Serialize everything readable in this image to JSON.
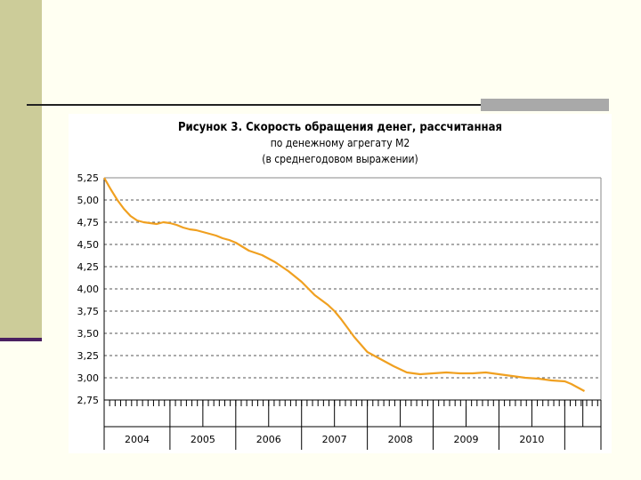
{
  "chart_data": {
    "type": "line",
    "title": "Рисунок 3. Скорость обращения денег, рассчитанная",
    "subtitle": "по денежному агрегату М2",
    "note": "(в среднегодовом выражении)",
    "ylim": [
      2.75,
      5.25
    ],
    "y_ticks": [
      "5,25",
      "5,00",
      "4,75",
      "4,50",
      "4,25",
      "4,00",
      "3,75",
      "3,50",
      "3,25",
      "3,00",
      "2,75"
    ],
    "y_tick_values": [
      5.25,
      5.0,
      4.75,
      4.5,
      4.25,
      4.0,
      3.75,
      3.5,
      3.25,
      3.0,
      2.75
    ],
    "x_labels": [
      "2004",
      "2005",
      "2006",
      "2007",
      "2008",
      "2009",
      "2010"
    ],
    "grid": true,
    "line_color": "#f0a020",
    "series": [
      {
        "x": [
          2003.0,
          2003.1,
          2003.2,
          2003.3,
          2003.4,
          2003.5,
          2003.6,
          2003.7,
          2003.8,
          2003.9,
          2004.0,
          2004.1,
          2004.2,
          2004.3,
          2004.4,
          2004.5,
          2004.6,
          2004.7,
          2004.8,
          2004.9,
          2005.0,
          2005.2,
          2005.4,
          2005.5,
          2005.6,
          2005.8,
          2006.0,
          2006.2,
          2006.4,
          2006.5,
          2006.6,
          2006.7,
          2006.8,
          2007.0,
          2007.2,
          2007.4,
          2007.6,
          2007.8,
          2008.0,
          2008.2,
          2008.4,
          2008.6,
          2008.8,
          2009.0,
          2009.2,
          2009.4,
          2009.6,
          2009.8,
          2010.0,
          2010.1,
          2010.2,
          2010.3
        ],
        "values": [
          5.25,
          5.12,
          5.0,
          4.9,
          4.82,
          4.77,
          4.75,
          4.74,
          4.73,
          4.75,
          4.74,
          4.72,
          4.69,
          4.67,
          4.66,
          4.64,
          4.62,
          4.6,
          4.57,
          4.55,
          4.52,
          4.43,
          4.38,
          4.34,
          4.3,
          4.2,
          4.08,
          3.93,
          3.82,
          3.75,
          3.66,
          3.56,
          3.46,
          3.29,
          3.21,
          3.13,
          3.06,
          3.04,
          3.05,
          3.06,
          3.05,
          3.05,
          3.06,
          3.04,
          3.02,
          3.0,
          2.99,
          2.97,
          2.96,
          2.93,
          2.89,
          2.85
        ]
      }
    ]
  }
}
